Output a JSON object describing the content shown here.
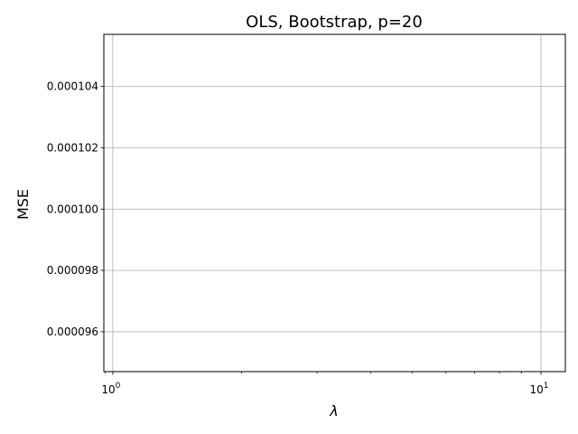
{
  "chart_data": {
    "type": "line",
    "title": "OLS, Bootstrap, p=20",
    "xlabel": "λ",
    "ylabel": "MSE",
    "xscale": "log",
    "xlim": [
      0.953,
      11.4
    ],
    "ylim": [
      9.47e-05,
      0.0001057
    ],
    "x_major_ticks": [
      {
        "value": 1,
        "base": "10",
        "exp": "0"
      },
      {
        "value": 10,
        "base": "10",
        "exp": "1"
      }
    ],
    "x_minor_ticks": [
      2,
      3,
      4,
      5,
      6,
      7,
      8,
      9
    ],
    "y_ticks": [
      {
        "value": 9.6e-05,
        "label": "0.000096"
      },
      {
        "value": 9.8e-05,
        "label": "0.000098"
      },
      {
        "value": 0.0001,
        "label": "0.000100"
      },
      {
        "value": 0.000102,
        "label": "0.000102"
      },
      {
        "value": 0.000104,
        "label": "0.000104"
      }
    ],
    "series": [],
    "grid": true,
    "colors": {
      "grid": "#b0b0b0",
      "axes": "#000000",
      "background": "#ffffff"
    }
  }
}
